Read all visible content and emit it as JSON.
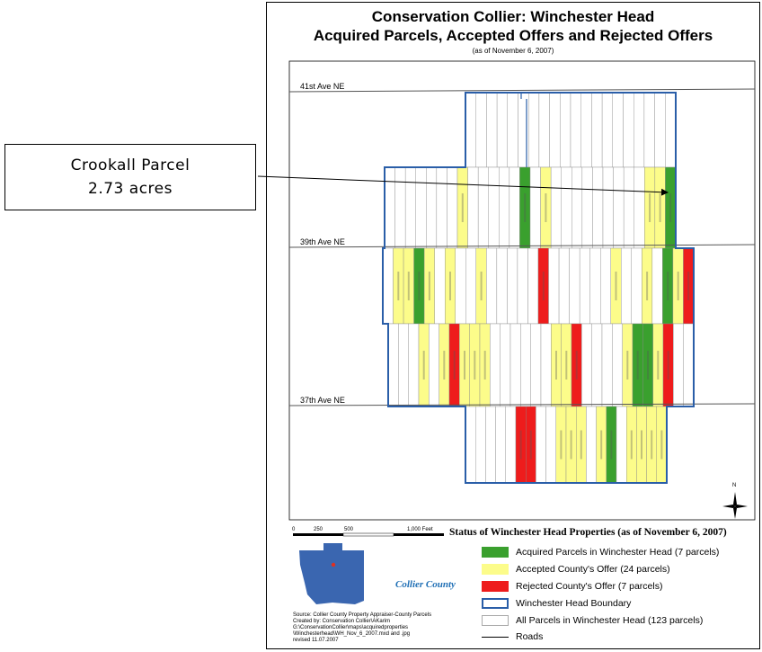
{
  "callout": {
    "line1": "Crookall Parcel",
    "line2": "2.73 acres"
  },
  "map": {
    "title_line1": "Conservation Collier: Winchester Head",
    "title_line2": "Acquired Parcels, Accepted Offers and Rejected Offers",
    "subtitle": "(as of November 6, 2007)",
    "roads": [
      "41st Ave NE",
      "39th Ave NE",
      "37th Ave NE"
    ],
    "scale": {
      "labels": [
        "0",
        "250",
        "500",
        "1,000 Feet"
      ]
    },
    "north": "N",
    "colors": {
      "acquired": "#3aa02e",
      "accepted": "#fcfc8a",
      "rejected": "#ee1c1c",
      "boundary": "#2a5ea8",
      "parcel_line": "#888888",
      "county_shape": "#3a66b0",
      "location_dot": "#e03020"
    }
  },
  "legend": {
    "title": "Status of Winchester Head Properties (as of November 6, 2007)",
    "items": [
      {
        "label": "Acquired Parcels in Winchester Head (7 parcels)",
        "kind": "acquired"
      },
      {
        "label": "Accepted County's Offer (24 parcels)",
        "kind": "accepted"
      },
      {
        "label": "Rejected County's Offer (7 parcels)",
        "kind": "rejected"
      },
      {
        "label": "Winchester Head Boundary",
        "kind": "boundary"
      },
      {
        "label": "All Parcels in Winchester Head (123 parcels)",
        "kind": "parcel"
      },
      {
        "label": "Roads",
        "kind": "road"
      }
    ]
  },
  "logo": {
    "text": "Collier County"
  },
  "source": {
    "lines": [
      "Source: Collier County Property Appraiser-County Parcels",
      "Created by: Conservation Collier\\AKarim",
      "G:\\ConservationCollier\\maps\\acquiredproperties",
      "\\Winchesterhead\\WH_Nov_6_2007.mxd and .jpg",
      "revised 11.07.2007"
    ]
  }
}
